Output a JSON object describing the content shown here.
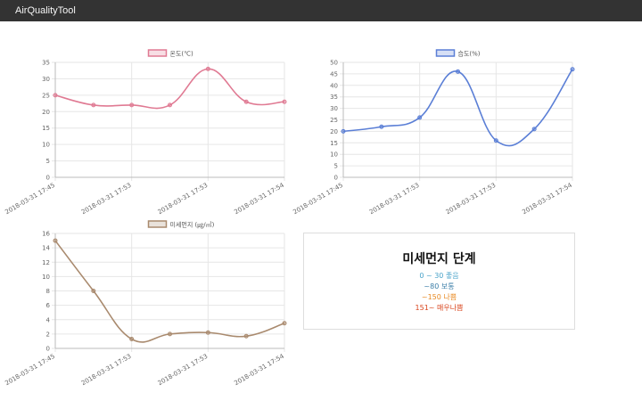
{
  "app": {
    "title": "AirQualityTool"
  },
  "colors": {
    "navbar": "#333333",
    "temperature": "#e07a93",
    "humidity": "#5b7fd6",
    "dust": "#a98a6e",
    "grid": "#e6e6e6",
    "level_good": "#4aa3c9",
    "level_normal": "#3d7fa8",
    "level_bad": "#e88a22",
    "level_very_bad": "#d9471f"
  },
  "chart_data": [
    {
      "type": "line",
      "legend": "온도(℃)",
      "x": [
        "2018-03-31 17:45",
        "2018-03-31 17:53",
        "2018-03-31 17:53",
        "2018-03-31 17:53",
        "2018-03-31 17:53",
        "2018-03-31 17:54",
        "2018-03-31 17:54"
      ],
      "xticks": [
        "2018-03-31 17:45",
        "2018-03-31 17:53",
        "2018-03-31 17:53",
        "2018-03-31 17:54"
      ],
      "series": [
        {
          "name": "온도(℃)",
          "values": [
            25,
            22,
            22,
            22,
            33,
            23,
            23
          ]
        }
      ],
      "yticks": [
        "0",
        "5",
        "10",
        "15",
        "20",
        "25",
        "30",
        "35"
      ],
      "ylim": [
        0,
        35
      ],
      "grid": true,
      "legend_position": "top"
    },
    {
      "type": "line",
      "legend": "습도(%)",
      "x": [
        "2018-03-31 17:45",
        "2018-03-31 17:53",
        "2018-03-31 17:53",
        "2018-03-31 17:53",
        "2018-03-31 17:53",
        "2018-03-31 17:54",
        "2018-03-31 17:54"
      ],
      "xticks": [
        "2018-03-31 17:45",
        "2018-03-31 17:53",
        "2018-03-31 17:53",
        "2018-03-31 17:54"
      ],
      "series": [
        {
          "name": "습도(%)",
          "values": [
            20,
            22,
            26,
            46,
            16,
            21,
            47
          ]
        }
      ],
      "yticks": [
        "0",
        "5",
        "10",
        "15",
        "20",
        "25",
        "30",
        "35",
        "40",
        "45",
        "50"
      ],
      "ylim": [
        0,
        50
      ],
      "grid": true,
      "legend_position": "top"
    },
    {
      "type": "line",
      "legend": "미세먼지 (㎍/㎥)",
      "x": [
        "2018-03-31 17:45",
        "2018-03-31 17:53",
        "2018-03-31 17:53",
        "2018-03-31 17:53",
        "2018-03-31 17:53",
        "2018-03-31 17:54",
        "2018-03-31 17:54"
      ],
      "xticks": [
        "2018-03-31 17:45",
        "2018-03-31 17:53",
        "2018-03-31 17:53",
        "2018-03-31 17:54"
      ],
      "series": [
        {
          "name": "미세먼지 (㎍/㎥)",
          "values": [
            15,
            8,
            1.3,
            2,
            2.2,
            1.7,
            3.5
          ]
        }
      ],
      "yticks": [
        "0",
        "2",
        "4",
        "6",
        "8",
        "10",
        "12",
        "14",
        "16"
      ],
      "ylim": [
        0,
        16
      ],
      "grid": true,
      "legend_position": "top"
    }
  ],
  "dust_levels": {
    "title": "미세먼지 단계",
    "items": [
      {
        "text": "0 ~ 30 좋음"
      },
      {
        "text": "~80 보통"
      },
      {
        "text": "~150 나쁨"
      },
      {
        "text": "151~ 매우나쁨"
      }
    ]
  }
}
